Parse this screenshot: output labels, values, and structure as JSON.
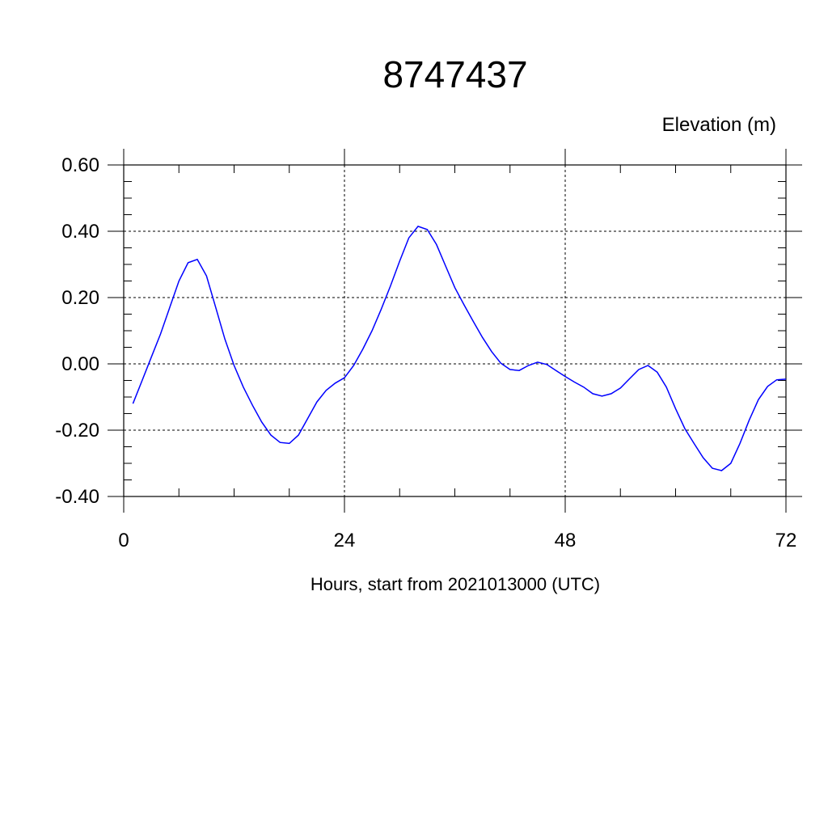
{
  "chart_data": {
    "type": "line",
    "title": "8747437",
    "ylabel": "Elevation (m)",
    "xlabel": "Hours, start from 2021013000 (UTC)",
    "xlim": [
      0,
      72
    ],
    "ylim": [
      -0.4,
      0.6
    ],
    "xticks": [
      0,
      24,
      48,
      72
    ],
    "xtick_labels": [
      "0",
      "24",
      "48",
      "72"
    ],
    "yticks": [
      -0.4,
      -0.2,
      0.0,
      0.2,
      0.4,
      0.6
    ],
    "ytick_labels": [
      "-0.40",
      "-0.20",
      "0.00",
      "0.20",
      "0.40",
      "0.60"
    ],
    "grid": true,
    "series": [
      {
        "color": "#0000ff",
        "x": [
          1,
          2,
          3,
          4,
          5,
          6,
          7,
          8,
          9,
          10,
          11,
          12,
          13,
          14,
          15,
          16,
          17,
          18,
          19,
          20,
          21,
          22,
          23,
          24,
          25,
          26,
          27,
          28,
          29,
          30,
          31,
          32,
          33,
          34,
          35,
          36,
          37,
          38,
          39,
          40,
          41,
          42,
          43,
          44,
          45,
          46,
          47,
          48,
          49,
          50,
          51,
          52,
          53,
          54,
          55,
          56,
          57,
          58,
          59,
          60,
          61,
          62,
          63,
          64,
          65,
          66,
          67,
          68,
          69,
          70,
          71,
          72
        ],
        "y": [
          -0.12,
          -0.05,
          0.02,
          0.09,
          0.17,
          0.25,
          0.305,
          0.315,
          0.265,
          0.17,
          0.075,
          -0.005,
          -0.07,
          -0.125,
          -0.175,
          -0.215,
          -0.237,
          -0.24,
          -0.215,
          -0.165,
          -0.115,
          -0.08,
          -0.058,
          -0.042,
          -0.005,
          0.045,
          0.1,
          0.165,
          0.235,
          0.31,
          0.38,
          0.415,
          0.405,
          0.36,
          0.295,
          0.23,
          0.178,
          0.128,
          0.08,
          0.037,
          0.002,
          -0.017,
          -0.02,
          -0.005,
          0.005,
          -0.002,
          -0.02,
          -0.038,
          -0.055,
          -0.07,
          -0.09,
          -0.097,
          -0.09,
          -0.073,
          -0.045,
          -0.017,
          -0.005,
          -0.025,
          -0.07,
          -0.135,
          -0.195,
          -0.24,
          -0.283,
          -0.315,
          -0.322,
          -0.3,
          -0.24,
          -0.17,
          -0.108,
          -0.068,
          -0.048,
          -0.046
        ]
      }
    ]
  }
}
